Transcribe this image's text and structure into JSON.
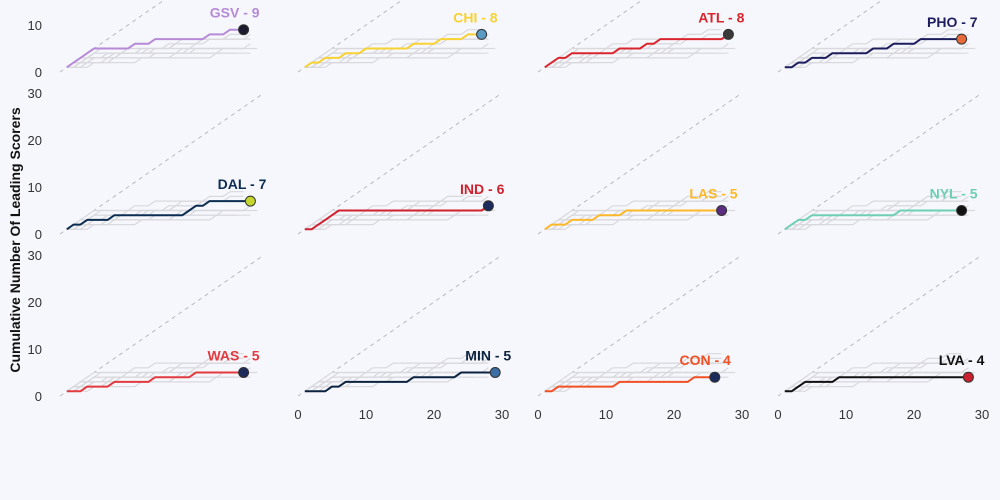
{
  "chart_data": {
    "type": "line",
    "ylabel": "Cumulative Number Of Leading Scorers",
    "x": [
      1,
      2,
      3,
      4,
      5,
      6,
      7,
      8,
      9,
      10,
      11,
      12,
      13,
      14,
      15,
      16,
      17,
      18,
      19,
      20,
      21,
      22,
      23,
      24,
      25,
      26,
      27,
      28,
      29,
      30
    ],
    "xlim": [
      0,
      30
    ],
    "ylim": [
      0,
      30
    ],
    "xticks": [
      0,
      10,
      20,
      30
    ],
    "yticks": [
      0,
      10,
      20,
      30
    ],
    "series": [
      {
        "name": "GSV - 9",
        "color": "#b68ad6",
        "marker_color": "#1b1b2f",
        "values": [
          1,
          2,
          3,
          4,
          5,
          5,
          5,
          5,
          5,
          5,
          6,
          6,
          6,
          7,
          7,
          7,
          7,
          7,
          7,
          7,
          7,
          8,
          8,
          8,
          9,
          9,
          9,
          null,
          null,
          null
        ]
      },
      {
        "name": "CHI - 8",
        "color": "#f7d232",
        "marker_color": "#5a9bc2",
        "values": [
          1,
          2,
          2,
          3,
          3,
          3,
          4,
          4,
          4,
          5,
          5,
          5,
          5,
          5,
          5,
          5,
          6,
          6,
          6,
          6,
          7,
          7,
          7,
          7,
          8,
          8,
          8,
          null,
          null,
          null
        ]
      },
      {
        "name": "ATL - 8",
        "color": "#d9262e",
        "marker_color": "#3a3a3a",
        "values": [
          1,
          2,
          3,
          3,
          4,
          4,
          4,
          4,
          4,
          4,
          4,
          5,
          5,
          5,
          5,
          6,
          6,
          7,
          7,
          7,
          7,
          7,
          7,
          7,
          7,
          7,
          7,
          8,
          null,
          null
        ]
      },
      {
        "name": "PHO - 7",
        "color": "#1d1d5e",
        "marker_color": "#e8693a",
        "values": [
          1,
          1,
          2,
          2,
          3,
          3,
          3,
          4,
          4,
          4,
          4,
          4,
          4,
          5,
          5,
          5,
          6,
          6,
          6,
          6,
          7,
          7,
          7,
          7,
          7,
          7,
          7,
          null,
          null,
          null
        ]
      },
      {
        "name": "DAL - 7",
        "color": "#0c2d52",
        "marker_color": "#c4d62e",
        "values": [
          1,
          2,
          2,
          3,
          3,
          3,
          3,
          4,
          4,
          4,
          4,
          4,
          4,
          4,
          4,
          4,
          4,
          4,
          5,
          6,
          6,
          7,
          7,
          7,
          7,
          7,
          7,
          7,
          null,
          null
        ]
      },
      {
        "name": "IND - 6",
        "color": "#d0222e",
        "marker_color": "#1d2a5c",
        "values": [
          1,
          1,
          2,
          3,
          4,
          5,
          5,
          5,
          5,
          5,
          5,
          5,
          5,
          5,
          5,
          5,
          5,
          5,
          5,
          5,
          5,
          5,
          5,
          5,
          5,
          5,
          5,
          6,
          null,
          null
        ]
      },
      {
        "name": "LAS - 5",
        "color": "#fcb829",
        "marker_color": "#5b2d82",
        "values": [
          1,
          2,
          2,
          2,
          3,
          3,
          3,
          3,
          4,
          4,
          4,
          4,
          5,
          5,
          5,
          5,
          5,
          5,
          5,
          5,
          5,
          5,
          5,
          5,
          5,
          5,
          5,
          null,
          null,
          null
        ]
      },
      {
        "name": "NYL - 5",
        "color": "#6ecfb3",
        "marker_color": "#111111",
        "values": [
          1,
          2,
          3,
          3,
          4,
          4,
          4,
          4,
          4,
          4,
          4,
          4,
          4,
          4,
          4,
          4,
          4,
          5,
          5,
          5,
          5,
          5,
          5,
          5,
          5,
          5,
          5,
          null,
          null,
          null
        ]
      },
      {
        "name": "WAS - 5",
        "color": "#e23a3e",
        "marker_color": "#1d2a5c",
        "values": [
          1,
          1,
          1,
          2,
          2,
          2,
          2,
          3,
          3,
          3,
          3,
          3,
          3,
          4,
          4,
          4,
          4,
          4,
          4,
          5,
          5,
          5,
          5,
          5,
          5,
          5,
          5,
          null,
          null,
          null
        ]
      },
      {
        "name": "MIN - 5",
        "color": "#0c2340",
        "marker_color": "#3a6ea5",
        "values": [
          1,
          1,
          1,
          1,
          2,
          2,
          3,
          3,
          3,
          3,
          3,
          3,
          3,
          3,
          3,
          3,
          4,
          4,
          4,
          4,
          4,
          4,
          4,
          5,
          5,
          5,
          5,
          5,
          5,
          null
        ]
      },
      {
        "name": "CON - 4",
        "color": "#f05023",
        "marker_color": "#1d2a5c",
        "values": [
          1,
          1,
          2,
          2,
          2,
          2,
          2,
          2,
          2,
          2,
          2,
          3,
          3,
          3,
          3,
          3,
          3,
          3,
          3,
          3,
          3,
          3,
          4,
          4,
          4,
          4,
          null,
          null,
          null,
          null
        ]
      },
      {
        "name": "LVA - 4",
        "color": "#111111",
        "marker_color": "#c8202e",
        "values": [
          1,
          1,
          2,
          3,
          3,
          3,
          3,
          3,
          4,
          4,
          4,
          4,
          4,
          4,
          4,
          4,
          4,
          4,
          4,
          4,
          4,
          4,
          4,
          4,
          4,
          4,
          4,
          4,
          null,
          null
        ]
      }
    ]
  }
}
